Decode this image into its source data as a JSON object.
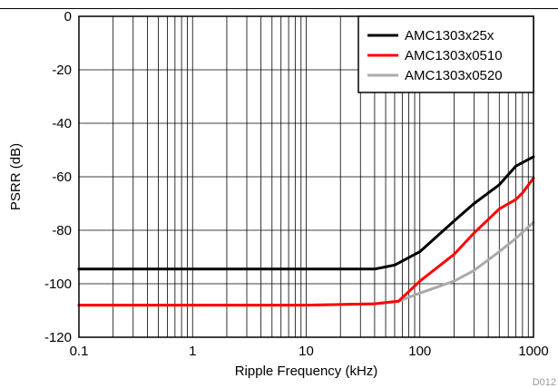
{
  "figure_id": "D012",
  "chart_data": {
    "type": "line",
    "xlabel": "Ripple Frequency (kHz)",
    "ylabel": "PSRR (dB)",
    "x_scale": "log",
    "xlim": [
      0.1,
      1000
    ],
    "ylim": [
      -120,
      0
    ],
    "x_ticks": [
      {
        "value": 0.1,
        "label": "0.1"
      },
      {
        "value": 1,
        "label": "1"
      },
      {
        "value": 10,
        "label": "10"
      },
      {
        "value": 100,
        "label": "100"
      },
      {
        "value": 1000,
        "label": "1000"
      }
    ],
    "y_ticks": [
      {
        "value": 0,
        "label": "0"
      },
      {
        "value": -20,
        "label": "-20"
      },
      {
        "value": -40,
        "label": "-40"
      },
      {
        "value": -60,
        "label": "-60"
      },
      {
        "value": -80,
        "label": "-80"
      },
      {
        "value": -100,
        "label": "-100"
      },
      {
        "value": -120,
        "label": "-120"
      }
    ],
    "grid": true,
    "legend_position": "top-right",
    "series": [
      {
        "name": "AMC1303x25x",
        "color": "#000000",
        "x": [
          0.1,
          1,
          10,
          40,
          60,
          100,
          200,
          300,
          500,
          700,
          1000
        ],
        "y": [
          -94.5,
          -94.5,
          -94.5,
          -94.5,
          -93,
          -88,
          -76.5,
          -70,
          -63,
          -56,
          -52.5
        ]
      },
      {
        "name": "AMC1303x0510",
        "color": "#ff0000",
        "x": [
          0.1,
          1,
          10,
          40,
          65,
          100,
          200,
          300,
          500,
          700,
          800,
          1000
        ],
        "y": [
          -108,
          -108,
          -108,
          -107.5,
          -106.5,
          -99,
          -89,
          -81,
          -72,
          -68.5,
          -66,
          -60.5
        ]
      },
      {
        "name": "AMC1303x0520",
        "color": "#aaaaaa",
        "x": [
          0.1,
          1,
          10,
          40,
          65,
          100,
          200,
          300,
          500,
          700,
          1000
        ],
        "y": [
          -108,
          -108,
          -108,
          -107.5,
          -106.5,
          -103.5,
          -99,
          -95,
          -88,
          -83,
          -77
        ]
      }
    ]
  }
}
